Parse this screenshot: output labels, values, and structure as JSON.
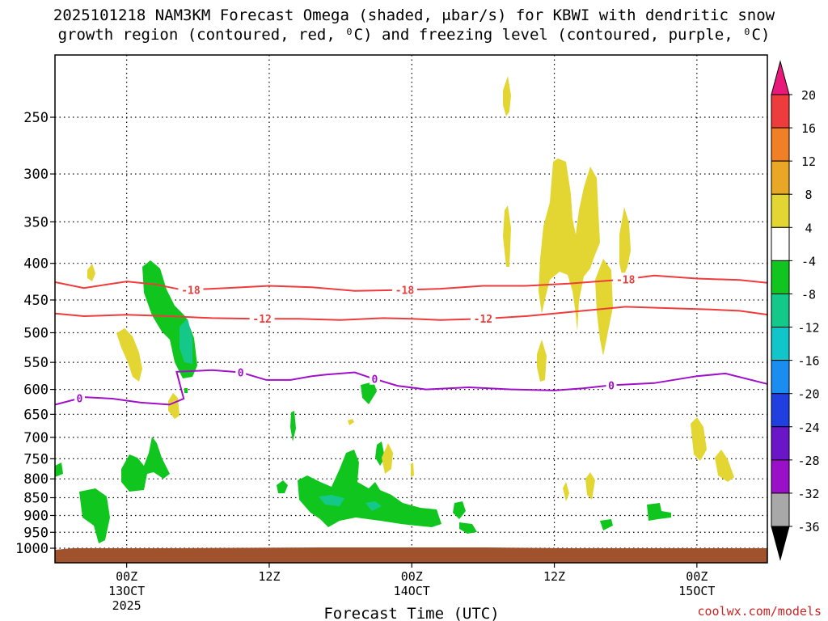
{
  "chart_data": {
    "type": "time-height cross section",
    "title_line1": "2025101218 NAM3KM Forecast Omega (shaded, μbar/s) for KBWI with dendritic snow",
    "title_line2": "growth region (contoured, red, ⁰C) and freezing level (contoured, purple, ⁰C)",
    "xlabel": "Forecast Time (UTC)",
    "credit": "coolwx.com/models",
    "x_range_hours": [
      -5,
      45
    ],
    "y_range_hpa": [
      200,
      1020
    ],
    "x_ticks": [
      {
        "hour": 0,
        "line1": "00Z",
        "line2": "13OCT",
        "line3": "2025"
      },
      {
        "hour": 10,
        "line1": "12Z",
        "line2": "",
        "line3": ""
      },
      {
        "hour": 20,
        "line1": "00Z",
        "line2": "14OCT",
        "line3": ""
      },
      {
        "hour": 30,
        "line1": "12Z",
        "line2": "",
        "line3": ""
      },
      {
        "hour": 40,
        "line1": "00Z",
        "line2": "15OCT",
        "line3": ""
      }
    ],
    "y_ticks": [
      250,
      300,
      350,
      400,
      450,
      500,
      550,
      600,
      650,
      700,
      750,
      800,
      850,
      900,
      950,
      1000
    ],
    "colorbar": {
      "tick_labels": [
        "20",
        "16",
        "12",
        "8",
        "4",
        "-4",
        "-8",
        "-12",
        "-16",
        "-20",
        "-24",
        "-28",
        "-32",
        "-36"
      ],
      "bins": [
        {
          "range": ">20",
          "color": "#e8197a"
        },
        {
          "range": "16 to 20",
          "color": "#ee3b3b"
        },
        {
          "range": "12 to 16",
          "color": "#f07f25"
        },
        {
          "range": "8 to 12",
          "color": "#e8a826"
        },
        {
          "range": "4 to 8",
          "color": "#e3d632"
        },
        {
          "range": "-4 to 4",
          "color": "#ffffff"
        },
        {
          "range": "-8 to -4",
          "color": "#10c61e"
        },
        {
          "range": "-12 to -8",
          "color": "#14c88a"
        },
        {
          "range": "-16 to -12",
          "color": "#10c6c8"
        },
        {
          "range": "-20 to -16",
          "color": "#1a8ef0"
        },
        {
          "range": "-24 to -20",
          "color": "#1f3fe0"
        },
        {
          "range": "-28 to -24",
          "color": "#6a16c8"
        },
        {
          "range": "-32 to -28",
          "color": "#9a10c8"
        },
        {
          "range": "-36 to -32",
          "color": "#a8a8a8"
        },
        {
          "range": "<-36",
          "color": "#000000"
        }
      ]
    },
    "contours": [
      {
        "label": "-18",
        "color": "#ee3b3b",
        "label_hours": [
          4.5,
          19.5,
          35
        ],
        "points": [
          [
            -5,
            425
          ],
          [
            -3,
            433
          ],
          [
            0,
            424
          ],
          [
            2,
            428
          ],
          [
            4,
            436
          ],
          [
            7,
            433
          ],
          [
            10,
            430
          ],
          [
            13,
            432
          ],
          [
            16,
            437
          ],
          [
            19,
            436
          ],
          [
            22,
            434
          ],
          [
            25,
            430
          ],
          [
            28,
            430
          ],
          [
            31,
            427
          ],
          [
            33,
            424
          ],
          [
            35,
            421
          ],
          [
            37,
            416
          ],
          [
            40,
            420
          ],
          [
            43,
            422
          ],
          [
            45,
            426
          ]
        ]
      },
      {
        "label": "-12",
        "color": "#ee3b3b",
        "label_hours": [
          9.5,
          25
        ],
        "points": [
          [
            -5,
            470
          ],
          [
            -3,
            474
          ],
          [
            0,
            472
          ],
          [
            3,
            474
          ],
          [
            6,
            477
          ],
          [
            9,
            478
          ],
          [
            12,
            478
          ],
          [
            15,
            480
          ],
          [
            18,
            477
          ],
          [
            20,
            478
          ],
          [
            22,
            480
          ],
          [
            25,
            478
          ],
          [
            28,
            474
          ],
          [
            30,
            470
          ],
          [
            32,
            466
          ],
          [
            35,
            460
          ],
          [
            38,
            462
          ],
          [
            41,
            464
          ],
          [
            43,
            466
          ],
          [
            45,
            472
          ]
        ]
      },
      {
        "label": "0",
        "color": "#a010c8",
        "label_hours": [
          -3.3,
          8,
          17.4,
          34
        ],
        "points": [
          [
            -5,
            630
          ],
          [
            -3,
            615
          ],
          [
            -1,
            618
          ],
          [
            1,
            626
          ],
          [
            3,
            630
          ],
          [
            4,
            618
          ],
          [
            3.5,
            567
          ],
          [
            6,
            564
          ],
          [
            8,
            568
          ],
          [
            9.8,
            582
          ],
          [
            11.5,
            582
          ],
          [
            13,
            575
          ],
          [
            14,
            572
          ],
          [
            16,
            568
          ],
          [
            17,
            577
          ],
          [
            19,
            593
          ],
          [
            21,
            600
          ],
          [
            24,
            596
          ],
          [
            27,
            600
          ],
          [
            30,
            602
          ],
          [
            32,
            598
          ],
          [
            34,
            592
          ],
          [
            37,
            588
          ],
          [
            40,
            575
          ],
          [
            42,
            570
          ],
          [
            45,
            590
          ]
        ]
      }
    ]
  }
}
